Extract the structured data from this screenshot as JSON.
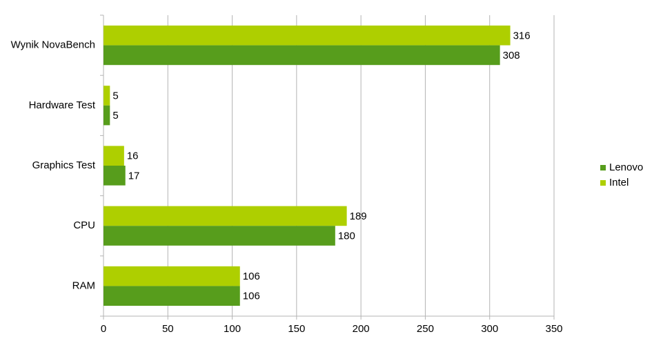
{
  "chart_data": {
    "type": "bar",
    "horizontal": true,
    "categories": [
      "Wynik NovaBench",
      "Hardware Test",
      "Graphics Test",
      "CPU",
      "RAM"
    ],
    "series": [
      {
        "name": "Lenovo",
        "color": "#579d1c",
        "values": [
          308,
          5,
          17,
          180,
          106
        ]
      },
      {
        "name": "Intel",
        "color": "#aecf00",
        "values": [
          316,
          5,
          16,
          189,
          106
        ]
      }
    ],
    "xlim": [
      0,
      350
    ],
    "xticks": [
      0,
      50,
      100,
      150,
      200,
      250,
      300,
      350
    ],
    "grid": true,
    "legend": "right"
  }
}
